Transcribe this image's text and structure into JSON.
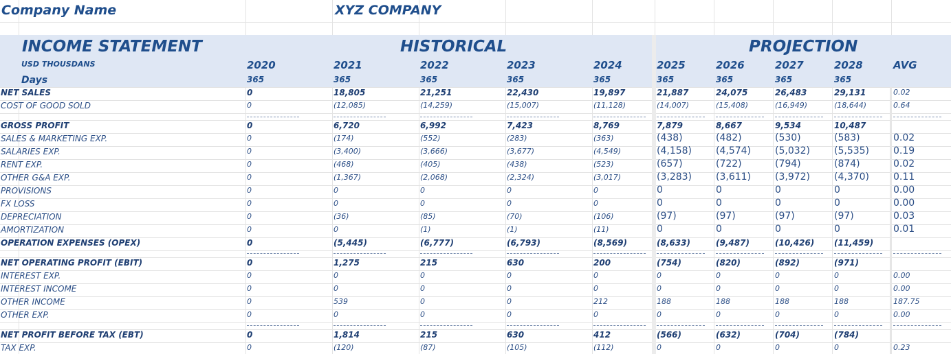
{
  "company": {
    "label": "Company Name",
    "value": "XYZ COMPANY"
  },
  "header": {
    "title": "INCOME STATEMENT",
    "historical": "HISTORICAL",
    "projection": "PROJECTION",
    "units": "USD THOUSDANS",
    "days_label": "Days",
    "years": [
      "2020",
      "2021",
      "2022",
      "2023",
      "2024",
      "2025",
      "2026",
      "2027",
      "2028"
    ],
    "avg_label": "AVG",
    "days": [
      "365",
      "365",
      "365",
      "365",
      "365",
      "365",
      "365",
      "365",
      "365"
    ]
  },
  "rows": [
    {
      "label": "NET SALES",
      "values": [
        "0",
        "18,805",
        "21,251",
        "22,430",
        "19,897",
        "21,887",
        "24,075",
        "26,483",
        "29,131"
      ],
      "avg": "0.02",
      "bold": true
    },
    {
      "label": "COST OF GOOD SOLD",
      "values": [
        "0",
        "(12,085)",
        "(14,259)",
        "(15,007)",
        "(11,128)",
        "(14,007)",
        "(15,408)",
        "(16,949)",
        "(18,644)"
      ],
      "avg": "0.64",
      "bold": false
    },
    {
      "label": "GROSS PROFIT",
      "values": [
        "0",
        "6,720",
        "6,992",
        "7,423",
        "8,769",
        "7,879",
        "8,667",
        "9,534",
        "10,487"
      ],
      "avg": "",
      "bold": true
    },
    {
      "label": "SALES & MARKETING EXP.",
      "values": [
        "0",
        "(174)",
        "(552)",
        "(283)",
        "(363)",
        "(438)",
        "(482)",
        "(530)",
        "(583)"
      ],
      "avg": "0.02",
      "bold": false
    },
    {
      "label": "SALARIES EXP.",
      "values": [
        "0",
        "(3,400)",
        "(3,666)",
        "(3,677)",
        "(4,549)",
        "(4,158)",
        "(4,574)",
        "(5,032)",
        "(5,535)"
      ],
      "avg": "0.19",
      "bold": false
    },
    {
      "label": "RENT EXP.",
      "values": [
        "0",
        "(468)",
        "(405)",
        "(438)",
        "(523)",
        "(657)",
        "(722)",
        "(794)",
        "(874)"
      ],
      "avg": "0.02",
      "bold": false
    },
    {
      "label": "OTHER G&A EXP.",
      "values": [
        "0",
        "(1,367)",
        "(2,068)",
        "(2,324)",
        "(3,017)",
        "(3,283)",
        "(3,611)",
        "(3,972)",
        "(4,370)"
      ],
      "avg": "0.11",
      "bold": false
    },
    {
      "label": "PROVISIONS",
      "values": [
        "0",
        "0",
        "0",
        "0",
        "0",
        "0",
        "0",
        "0",
        "0"
      ],
      "avg": "0.00",
      "bold": false
    },
    {
      "label": "FX LOSS",
      "values": [
        "0",
        "0",
        "0",
        "0",
        "0",
        "0",
        "0",
        "0",
        "0"
      ],
      "avg": "0.00",
      "bold": false
    },
    {
      "label": "DEPRECIATION",
      "values": [
        "0",
        "(36)",
        "(85)",
        "(70)",
        "(106)",
        "(97)",
        "(97)",
        "(97)",
        "(97)"
      ],
      "avg": "0.03",
      "bold": false
    },
    {
      "label": "AMORTIZATION",
      "values": [
        "0",
        "0",
        "(1)",
        "(1)",
        "(11)",
        "0",
        "0",
        "0",
        "0"
      ],
      "avg": "0.01",
      "bold": false
    },
    {
      "label": "OPERATION EXPENSES (OPEX)",
      "values": [
        "0",
        "(5,445)",
        "(6,777)",
        "(6,793)",
        "(8,569)",
        "(8,633)",
        "(9,487)",
        "(10,426)",
        "(11,459)"
      ],
      "avg": "",
      "bold": true
    },
    {
      "label": "NET OPERATING PROFIT (EBIT)",
      "values": [
        "0",
        "1,275",
        "215",
        "630",
        "200",
        "(754)",
        "(820)",
        "(892)",
        "(971)"
      ],
      "avg": "",
      "bold": true
    },
    {
      "label": "INTEREST EXP.",
      "values": [
        "0",
        "0",
        "0",
        "0",
        "0",
        "0",
        "0",
        "0",
        "0"
      ],
      "avg": "0.00",
      "bold": false
    },
    {
      "label": "INTEREST INCOME",
      "values": [
        "0",
        "0",
        "0",
        "0",
        "0",
        "0",
        "0",
        "0",
        "0"
      ],
      "avg": "0.00",
      "bold": false
    },
    {
      "label": "OTHER INCOME",
      "values": [
        "0",
        "539",
        "0",
        "0",
        "212",
        "188",
        "188",
        "188",
        "188"
      ],
      "avg": "187.75",
      "bold": false
    },
    {
      "label": "OTHER EXP.",
      "values": [
        "0",
        "0",
        "0",
        "0",
        "0",
        "0",
        "0",
        "0",
        "0"
      ],
      "avg": "0.00",
      "bold": false
    },
    {
      "label": "NET PROFIT BEFORE TAX (EBT)",
      "values": [
        "0",
        "1,814",
        "215",
        "630",
        "412",
        "(566)",
        "(632)",
        "(704)",
        "(784)"
      ],
      "avg": "",
      "bold": true
    },
    {
      "label": "TAX EXP.",
      "values": [
        "0",
        "(120)",
        "(87)",
        "(105)",
        "(112)",
        "0",
        "0",
        "0",
        "0"
      ],
      "avg": "0.23",
      "bold": false
    }
  ],
  "colors": {
    "title": "#1f4e8c",
    "text": "#2a4d85",
    "band": "#dfe7f4"
  }
}
